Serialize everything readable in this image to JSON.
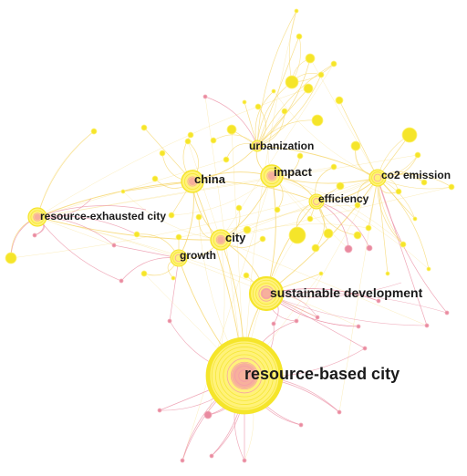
{
  "network": {
    "keywords": [
      {
        "id": "rbc",
        "label": "resource-based city"
      },
      {
        "id": "sd",
        "label": "sustainable development"
      },
      {
        "id": "rec",
        "label": "resource-exhausted city"
      },
      {
        "id": "china",
        "label": "china"
      },
      {
        "id": "impact",
        "label": "impact"
      },
      {
        "id": "urb",
        "label": "urbanization"
      },
      {
        "id": "co2",
        "label": "co2 emission"
      },
      {
        "id": "eff",
        "label": "efficiency"
      },
      {
        "id": "city",
        "label": "city"
      },
      {
        "id": "growth",
        "label": "growth"
      }
    ]
  },
  "colors": {
    "node_ring": "#f5e52a",
    "node_outer": "#fff27a",
    "node_core": "#f49aa8",
    "link_yellow": "#f6d66a",
    "link_pink": "#e98aa0"
  }
}
